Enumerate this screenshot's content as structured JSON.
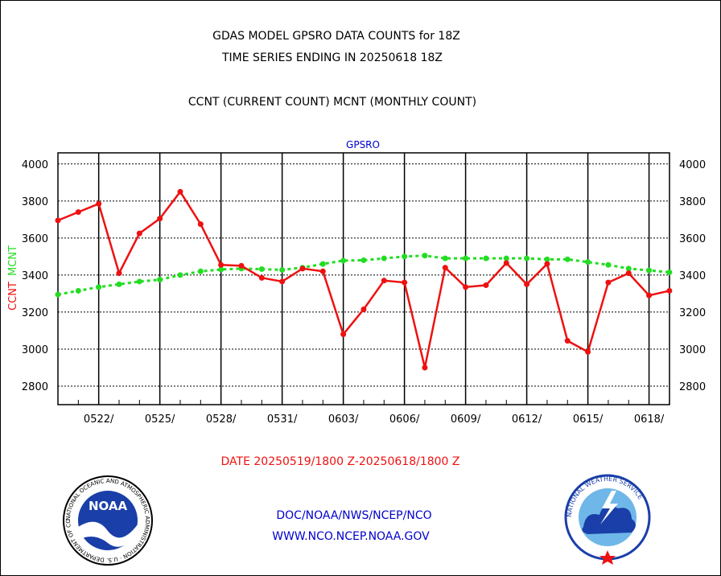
{
  "header": {
    "title_line1": "GDAS MODEL GPSRO DATA COUNTS for 18Z",
    "title_line2": "TIME SERIES ENDING IN 20250618 18Z",
    "subtitle": "CCNT (CURRENT COUNT) MCNT (MONTHLY COUNT)"
  },
  "footer": {
    "date_range": "DATE 20250519/1800 Z-20250618/1800 Z",
    "org_path": "DOC/NOAA/NWS/NCEP/NCO",
    "website": "WWW.NCO.NCEP.NOAA.GOV"
  },
  "logos": {
    "noaa": "NOAA",
    "noaa_ring": "NATIONAL OCEANIC AND ATMOSPHERIC ADMINISTRATION · U.S. DEPARTMENT OF COMMERCE",
    "nws_ring": "NATIONAL WEATHER SERVICE"
  },
  "colors": {
    "ccnt": "#ee1111",
    "mcnt": "#22dd22",
    "label_blue": "#0000cc"
  },
  "chart_data": {
    "type": "line",
    "panel_label": "GPSRO",
    "ylabel_ccnt": "CCNT",
    "ylabel_mcnt": "MCNT",
    "ylim": [
      2700,
      4060
    ],
    "yticks": [
      2800,
      3000,
      3200,
      3400,
      3600,
      3800,
      4000
    ],
    "x_tick_labels": [
      "0522/",
      "0525/",
      "0528/",
      "0531/",
      "0603/",
      "0606/",
      "0609/",
      "0612/",
      "0615/",
      "0618/"
    ],
    "grid": true,
    "series": [
      {
        "name": "CCNT",
        "values": [
          3695,
          3740,
          3785,
          3410,
          3625,
          3705,
          3850,
          3675,
          3455,
          3450,
          3385,
          3365,
          3435,
          3420,
          3080,
          3215,
          3370,
          3360,
          2900,
          3440,
          3335,
          3345,
          3465,
          3350,
          3460,
          3045,
          2985,
          3360,
          3410,
          3290,
          3315
        ]
      },
      {
        "name": "MCNT",
        "values": [
          3295,
          3315,
          3335,
          3350,
          3365,
          3375,
          3400,
          3420,
          3430,
          3435,
          3432,
          3428,
          3440,
          3460,
          3478,
          3480,
          3490,
          3500,
          3505,
          3490,
          3490,
          3490,
          3490,
          3490,
          3485,
          3485,
          3470,
          3455,
          3435,
          3425,
          3415
        ]
      }
    ]
  }
}
